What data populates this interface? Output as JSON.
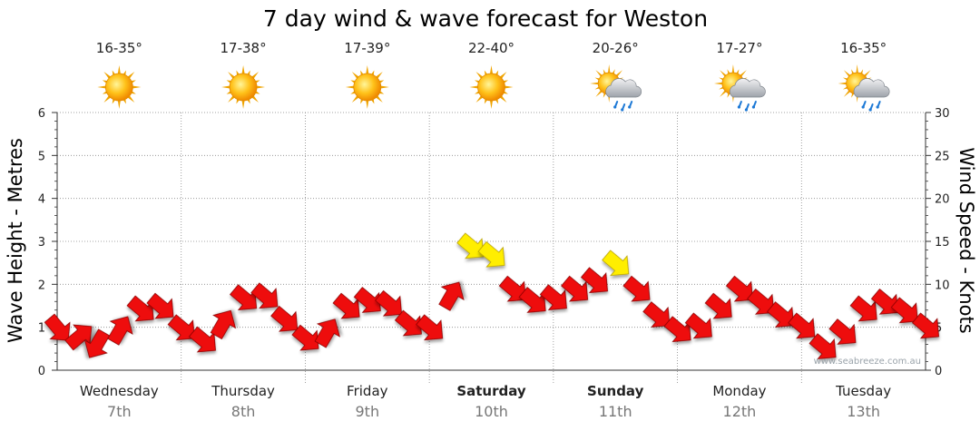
{
  "chart_data": {
    "type": "line",
    "title": "7 day wind & wave forecast for Weston",
    "ylabel_left": "Wave Height - Metres",
    "ylabel_right": "Wind Speed - Knots",
    "ylim_left": [
      0,
      6
    ],
    "ylim_right": [
      0,
      30
    ],
    "left_ticks": [
      "0",
      "1",
      "2",
      "3",
      "4",
      "5",
      "6"
    ],
    "right_ticks": [
      "0",
      "5",
      "10",
      "15",
      "20",
      "25",
      "30"
    ],
    "grid": true,
    "days": [
      {
        "name": "Wednesday",
        "date": "7th",
        "temp": "16-35°",
        "weather_icon": "sunny-icon",
        "bold": false
      },
      {
        "name": "Thursday",
        "date": "8th",
        "temp": "17-38°",
        "weather_icon": "sunny-icon",
        "bold": false
      },
      {
        "name": "Friday",
        "date": "9th",
        "temp": "17-39°",
        "weather_icon": "sunny-icon",
        "bold": false
      },
      {
        "name": "Saturday",
        "date": "10th",
        "temp": "22-40°",
        "weather_icon": "sunny-icon",
        "bold": true
      },
      {
        "name": "Sunday",
        "date": "11th",
        "temp": "20-26°",
        "weather_icon": "sun-cloud-rain-icon",
        "bold": true
      },
      {
        "name": "Monday",
        "date": "12th",
        "temp": "17-27°",
        "weather_icon": "sun-cloud-rain-icon",
        "bold": false
      },
      {
        "name": "Tuesday",
        "date": "13th",
        "temp": "16-35°",
        "weather_icon": "sun-cloud-rain-icon",
        "bold": false
      }
    ],
    "series": [
      {
        "name": "Wind Speed",
        "unit": "knots",
        "x_days": [
          0,
          0.17,
          0.33,
          0.5,
          0.67,
          0.83,
          1,
          1.17,
          1.33,
          1.5,
          1.67,
          1.83,
          2,
          2.17,
          2.33,
          2.5,
          2.67,
          2.83,
          3,
          3.17,
          3.33,
          3.5,
          3.67,
          3.83,
          4,
          4.17,
          4.33,
          4.5,
          4.67,
          4.83,
          5,
          5.17,
          5.33,
          5.5,
          5.67,
          5.83,
          6,
          6.17,
          6.33,
          6.5,
          6.67,
          6.83,
          7
        ],
        "values": [
          5,
          3.8,
          3.2,
          4.5,
          7.2,
          7.5,
          5,
          3.6,
          5.2,
          8.5,
          8.7,
          6,
          3.8,
          4.2,
          7.5,
          8.2,
          7.8,
          5.5,
          5,
          8.5,
          14.5,
          13.5,
          9.5,
          8.2,
          8.5,
          9.5,
          10.5,
          12.5,
          9.5,
          6.5,
          4.8,
          5.2,
          7.5,
          9.5,
          8,
          6.5,
          5.2,
          2.8,
          4.5,
          7.2,
          8,
          7,
          5.2
        ],
        "directions_deg": [
          50,
          320,
          120,
          300,
          40,
          40,
          40,
          40,
          300,
          40,
          40,
          40,
          40,
          300,
          40,
          40,
          40,
          40,
          40,
          300,
          40,
          40,
          40,
          40,
          40,
          40,
          40,
          40,
          40,
          40,
          40,
          40,
          40,
          40,
          40,
          40,
          40,
          40,
          40,
          40,
          40,
          40,
          40
        ],
        "highlight_threshold": 12,
        "color": "#ee1111",
        "highlight_color": "#ffee00"
      }
    ],
    "watermark": "www.seabreeze.com.au"
  }
}
